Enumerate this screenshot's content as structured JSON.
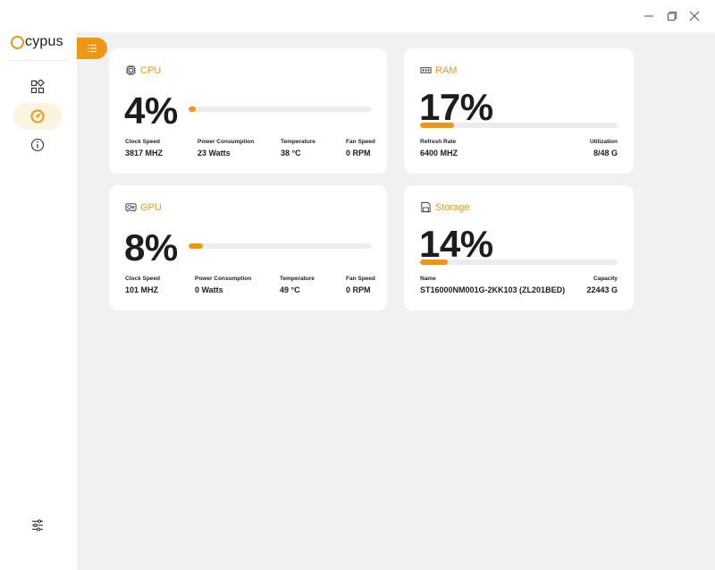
{
  "app": {
    "logo_text": "cypus"
  },
  "colors": {
    "accent": "#ef9614",
    "track": "#ececec",
    "background": "#f1f1f3"
  },
  "window_controls": [
    "minimize-icon",
    "restore-icon",
    "close-icon"
  ],
  "sidebar": {
    "items": [
      {
        "icon": "dashboard-grid-icon",
        "active": false
      },
      {
        "icon": "gauge-icon",
        "active": true
      },
      {
        "icon": "info-icon",
        "active": false
      }
    ],
    "bottom": {
      "icon": "sliders-icon"
    }
  },
  "cards": {
    "cpu": {
      "icon": "cpu-chip-icon",
      "title": "CPU",
      "percent_label": "4%",
      "usage": 0.04,
      "stats": [
        {
          "label": "Clock Speed",
          "value": "3817 MHZ"
        },
        {
          "label": "Power Consumption",
          "value": "23 Watts"
        },
        {
          "label": "Temperature",
          "value": "38 °C"
        },
        {
          "label": "Fan Speed",
          "value": "0 RPM"
        }
      ]
    },
    "ram": {
      "icon": "ram-module-icon",
      "title": "RAM",
      "percent_label": "17%",
      "usage": 0.17,
      "stats": [
        {
          "label": "Refresh Rate",
          "value": "6400 MHZ"
        },
        {
          "label": "Utilization",
          "value": "8/48 G"
        }
      ]
    },
    "gpu": {
      "icon": "gpu-card-icon",
      "title": "GPU",
      "percent_label": "8%",
      "usage": 0.08,
      "stats": [
        {
          "label": "Clock Speed",
          "value": "101 MHZ"
        },
        {
          "label": "Power Consumption",
          "value": "0 Watts"
        },
        {
          "label": "Temperature",
          "value": "49 °C"
        },
        {
          "label": "Fan Speed",
          "value": "0 RPM"
        }
      ]
    },
    "storage": {
      "icon": "storage-drive-icon",
      "title": "Storage",
      "percent_label": "14%",
      "usage": 0.14,
      "stats": [
        {
          "label": "Name",
          "value": "ST16000NM001G-2KK103 (ZL201BED)"
        },
        {
          "label": "Capacity",
          "value": "22443 G"
        }
      ]
    }
  }
}
